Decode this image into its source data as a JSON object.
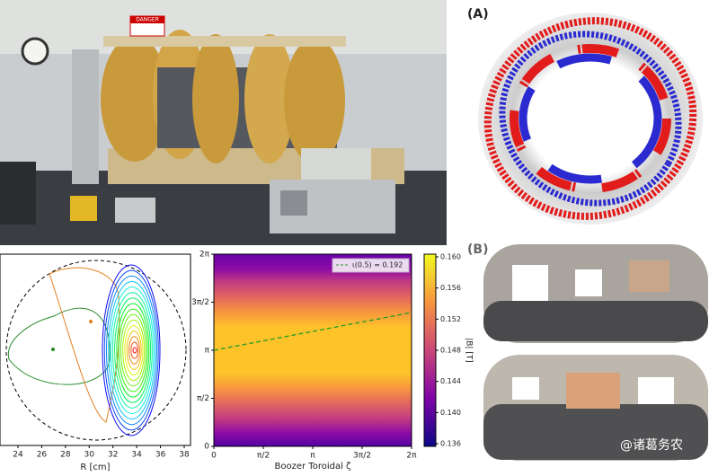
{
  "photo": {
    "sign": "DANGER"
  },
  "panel_a": {
    "label": "(A)"
  },
  "panel_b": {
    "label": "(B)"
  },
  "cross_section": {
    "xticks": [
      "24",
      "26",
      "28",
      "30",
      "32",
      "34",
      "36",
      "38"
    ],
    "xlabel": "R [cm]"
  },
  "field_map": {
    "xticks": [
      "0",
      "π/2",
      "π",
      "3π/2",
      "2π"
    ],
    "yticks": [
      "0",
      "π/2",
      "π",
      "3π/2",
      "2π"
    ],
    "xlabel": "Boozer Toroidal ζ",
    "legend": "ι(0.5) = 0.192",
    "colorbar": {
      "ticks": [
        "0.136",
        "0.140",
        "0.144",
        "0.148",
        "0.152",
        "0.156",
        "0.160"
      ],
      "label": "|B| [T]"
    }
  },
  "watermark": "@诸葛务农"
}
